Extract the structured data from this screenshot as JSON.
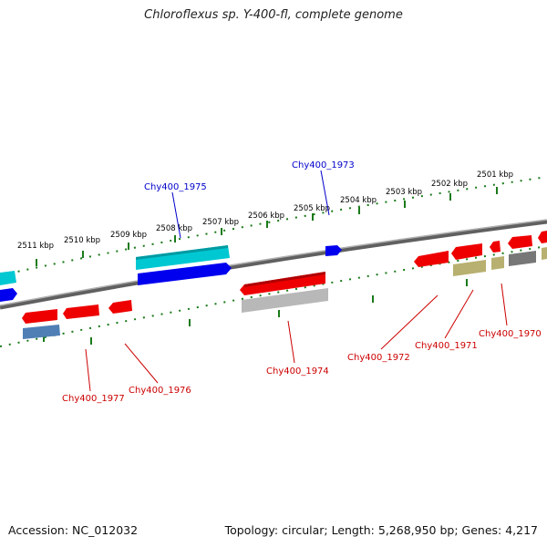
{
  "header": {
    "title": "Chloroflexus sp. Y-400-fl, complete genome"
  },
  "footer": {
    "accession": "Accession: NC_012032",
    "summary": "Topology: circular; Length: 5,268,950 bp; Genes: 4,217"
  },
  "ruler": {
    "ticks": [
      {
        "label": "2511 kbp"
      },
      {
        "label": "2510 kbp"
      },
      {
        "label": "2509 kbp"
      },
      {
        "label": "2508 kbp"
      },
      {
        "label": "2507 kbp"
      },
      {
        "label": "2506 kbp"
      },
      {
        "label": "2505 kbp"
      },
      {
        "label": "2504 kbp"
      },
      {
        "label": "2503 kbp"
      },
      {
        "label": "2502 kbp"
      },
      {
        "label": "2501 kbp"
      }
    ]
  },
  "colors": {
    "cyan": "#00c8d2",
    "blue": "#0000ee",
    "red": "#ee0000",
    "steel": "#4f7fb5",
    "gray": "#b8b8b8",
    "khaki": "#b8b070",
    "darkgray": "#777777",
    "ruler": "#1a7a1a",
    "backbone": "#808080"
  },
  "labels": [
    {
      "name": "Chy400_1973",
      "color": "#0000cc"
    },
    {
      "name": "Chy400_1975",
      "color": "#0000cc"
    },
    {
      "name": "Chy400_1974",
      "color": "#cc0000"
    },
    {
      "name": "Chy400_1972",
      "color": "#cc0000"
    },
    {
      "name": "Chy400_1971",
      "color": "#cc0000"
    },
    {
      "name": "Chy400_1970",
      "color": "#cc0000"
    },
    {
      "name": "Chy400_1977",
      "color": "#cc0000"
    },
    {
      "name": "Chy400_1976",
      "color": "#cc0000"
    }
  ]
}
